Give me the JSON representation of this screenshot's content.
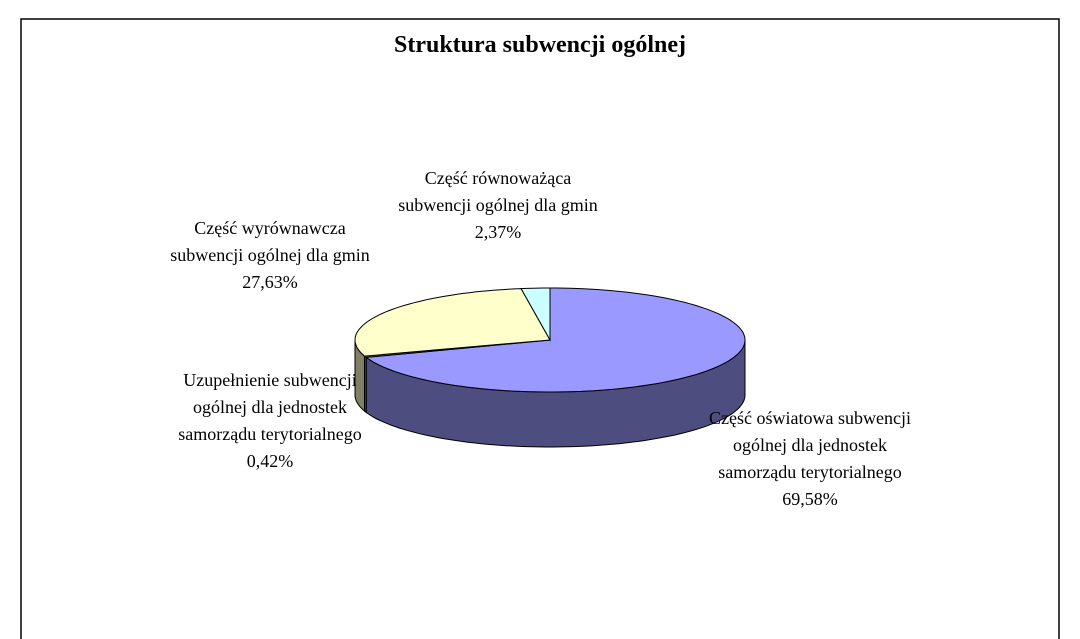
{
  "chart_data": {
    "type": "pie3d",
    "title": "Struktura subwencji ogólnej",
    "categories": [
      "Część oświatowa subwencji ogólnej dla jednostek samorządu terytorialnego",
      "Uzupełnienie subwencji ogólnej dla jednostek samorządu terytorialnego",
      "Część wyrównawcza subwencji ogólnej dla gmin",
      "Część równoważąca subwencji ogólnej dla gmin"
    ],
    "values": [
      69.58,
      0.42,
      27.63,
      2.37
    ],
    "value_labels": [
      "69,58%",
      "0,42%",
      "27,63%",
      "2,37%"
    ],
    "colors": [
      "#9999ff",
      "#999966",
      "#ffffcc",
      "#ccffff"
    ]
  }
}
